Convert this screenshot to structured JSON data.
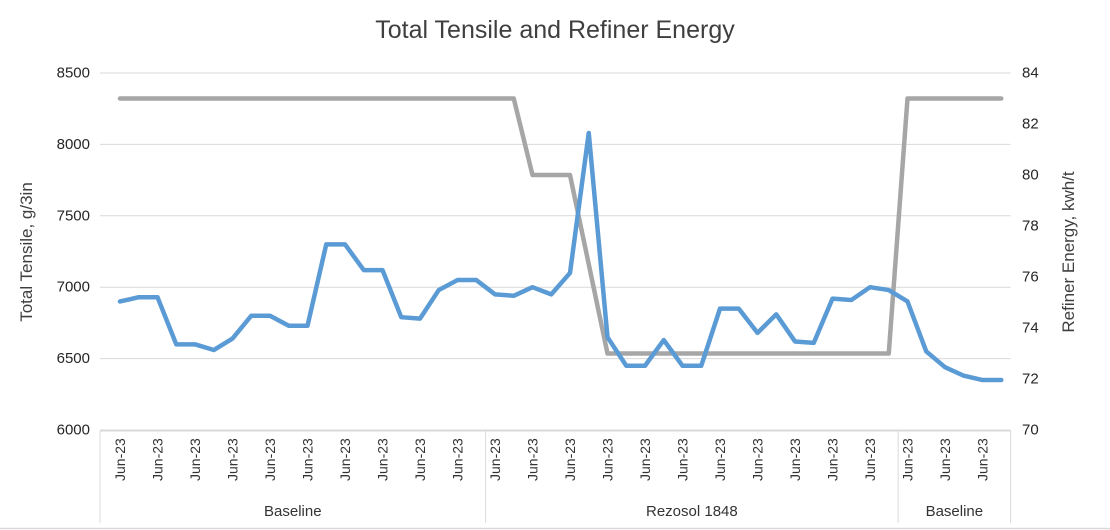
{
  "chart_data": {
    "type": "line",
    "title": "Total Tensile and Refiner Energy",
    "grid": true,
    "grid_color": "#D9D9D9",
    "legend": "none",
    "left_axis": {
      "label": "Total Tensile, g/3in",
      "ylim": [
        6000,
        8500
      ],
      "ticks": [
        8500,
        8000,
        7500,
        7000,
        6500,
        6000
      ]
    },
    "right_axis": {
      "label": "Refiner Energy, kwh/t",
      "ylim": [
        70,
        84
      ],
      "ticks": [
        84,
        82,
        80,
        78,
        76,
        74,
        72,
        70
      ]
    },
    "x": {
      "tick_label": "Jun-23",
      "label_every": 2,
      "sections": [
        {
          "label": "Baseline",
          "points": 20
        },
        {
          "label": "Rezosol 1848",
          "points": 22
        },
        {
          "label": "Baseline",
          "points": 6
        }
      ]
    },
    "series": [
      {
        "name": "Total Tensile",
        "axis": "left",
        "color": "#5B9BD5",
        "values": [
          6900,
          6930,
          6930,
          6600,
          6600,
          6560,
          6640,
          6800,
          6800,
          6730,
          6730,
          7300,
          7300,
          7120,
          7120,
          6790,
          6780,
          6980,
          7050,
          7050,
          6950,
          6940,
          7000,
          6950,
          7100,
          8080,
          6650,
          6450,
          6450,
          6630,
          6450,
          6450,
          6850,
          6850,
          6680,
          6810,
          6620,
          6610,
          6920,
          6910,
          7000,
          6980,
          6900,
          6550,
          6440,
          6380,
          6350,
          6350
        ]
      },
      {
        "name": "Refiner Energy",
        "axis": "right",
        "color": "#A6A6A6",
        "values": [
          83,
          83,
          83,
          83,
          83,
          83,
          83,
          83,
          83,
          83,
          83,
          83,
          83,
          83,
          83,
          83,
          83,
          83,
          83,
          83,
          83,
          83,
          80,
          80,
          80,
          76.5,
          73,
          73,
          73,
          73,
          73,
          73,
          73,
          73,
          73,
          73,
          73,
          73,
          73,
          73,
          73,
          73,
          83,
          83,
          83,
          83,
          83,
          83
        ]
      }
    ]
  }
}
